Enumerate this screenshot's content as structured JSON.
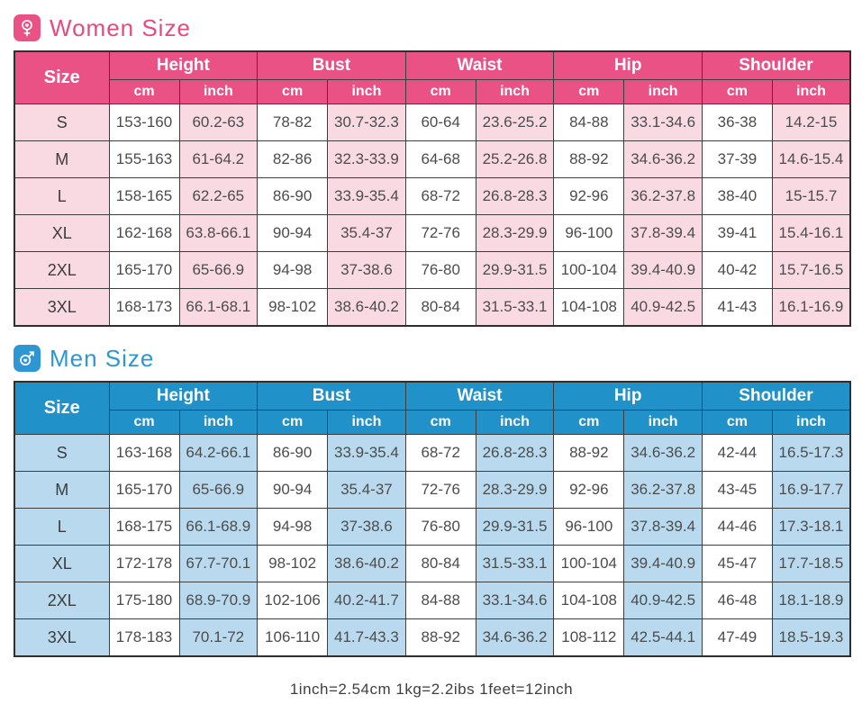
{
  "colors": {
    "women_accent": "#ea5285",
    "women_light": "#f9dae3",
    "women_title": "#e8497f",
    "men_accent": "#2191ca",
    "men_light": "#b9daee",
    "men_title": "#2e96d3",
    "border": "#3d3d3d"
  },
  "note": "1inch=2.54cm  1kg=2.2ibs  1feet=12inch",
  "tables": [
    {
      "key": "women",
      "title": "Women Size",
      "icon": "female-symbol-icon",
      "size_header": "Size",
      "groups": [
        "Height",
        "Bust",
        "Waist",
        "Hip",
        "Shoulder"
      ],
      "sub_headers": [
        "cm",
        "inch"
      ],
      "rows": [
        {
          "size": "S",
          "cells": [
            "153-160",
            "60.2-63",
            "78-82",
            "30.7-32.3",
            "60-64",
            "23.6-25.2",
            "84-88",
            "33.1-34.6",
            "36-38",
            "14.2-15"
          ]
        },
        {
          "size": "M",
          "cells": [
            "155-163",
            "61-64.2",
            "82-86",
            "32.3-33.9",
            "64-68",
            "25.2-26.8",
            "88-92",
            "34.6-36.2",
            "37-39",
            "14.6-15.4"
          ]
        },
        {
          "size": "L",
          "cells": [
            "158-165",
            "62.2-65",
            "86-90",
            "33.9-35.4",
            "68-72",
            "26.8-28.3",
            "92-96",
            "36.2-37.8",
            "38-40",
            "15-15.7"
          ]
        },
        {
          "size": "XL",
          "cells": [
            "162-168",
            "63.8-66.1",
            "90-94",
            "35.4-37",
            "72-76",
            "28.3-29.9",
            "96-100",
            "37.8-39.4",
            "39-41",
            "15.4-16.1"
          ]
        },
        {
          "size": "2XL",
          "cells": [
            "165-170",
            "65-66.9",
            "94-98",
            "37-38.6",
            "76-80",
            "29.9-31.5",
            "100-104",
            "39.4-40.9",
            "40-42",
            "15.7-16.5"
          ]
        },
        {
          "size": "3XL",
          "cells": [
            "168-173",
            "66.1-68.1",
            "98-102",
            "38.6-40.2",
            "80-84",
            "31.5-33.1",
            "104-108",
            "40.9-42.5",
            "41-43",
            "16.1-16.9"
          ]
        }
      ]
    },
    {
      "key": "men",
      "title": "Men Size",
      "icon": "male-symbol-icon",
      "size_header": "Size",
      "groups": [
        "Height",
        "Bust",
        "Waist",
        "Hip",
        "Shoulder"
      ],
      "sub_headers": [
        "cm",
        "inch"
      ],
      "rows": [
        {
          "size": "S",
          "cells": [
            "163-168",
            "64.2-66.1",
            "86-90",
            "33.9-35.4",
            "68-72",
            "26.8-28.3",
            "88-92",
            "34.6-36.2",
            "42-44",
            "16.5-17.3"
          ]
        },
        {
          "size": "M",
          "cells": [
            "165-170",
            "65-66.9",
            "90-94",
            "35.4-37",
            "72-76",
            "28.3-29.9",
            "92-96",
            "36.2-37.8",
            "43-45",
            "16.9-17.7"
          ]
        },
        {
          "size": "L",
          "cells": [
            "168-175",
            "66.1-68.9",
            "94-98",
            "37-38.6",
            "76-80",
            "29.9-31.5",
            "96-100",
            "37.8-39.4",
            "44-46",
            "17.3-18.1"
          ]
        },
        {
          "size": "XL",
          "cells": [
            "172-178",
            "67.7-70.1",
            "98-102",
            "38.6-40.2",
            "80-84",
            "31.5-33.1",
            "100-104",
            "39.4-40.9",
            "45-47",
            "17.7-18.5"
          ]
        },
        {
          "size": "2XL",
          "cells": [
            "175-180",
            "68.9-70.9",
            "102-106",
            "40.2-41.7",
            "84-88",
            "33.1-34.6",
            "104-108",
            "40.9-42.5",
            "46-48",
            "18.1-18.9"
          ]
        },
        {
          "size": "3XL",
          "cells": [
            "178-183",
            "70.1-72",
            "106-110",
            "41.7-43.3",
            "88-92",
            "34.6-36.2",
            "108-112",
            "42.5-44.1",
            "47-49",
            "18.5-19.3"
          ]
        }
      ]
    }
  ]
}
